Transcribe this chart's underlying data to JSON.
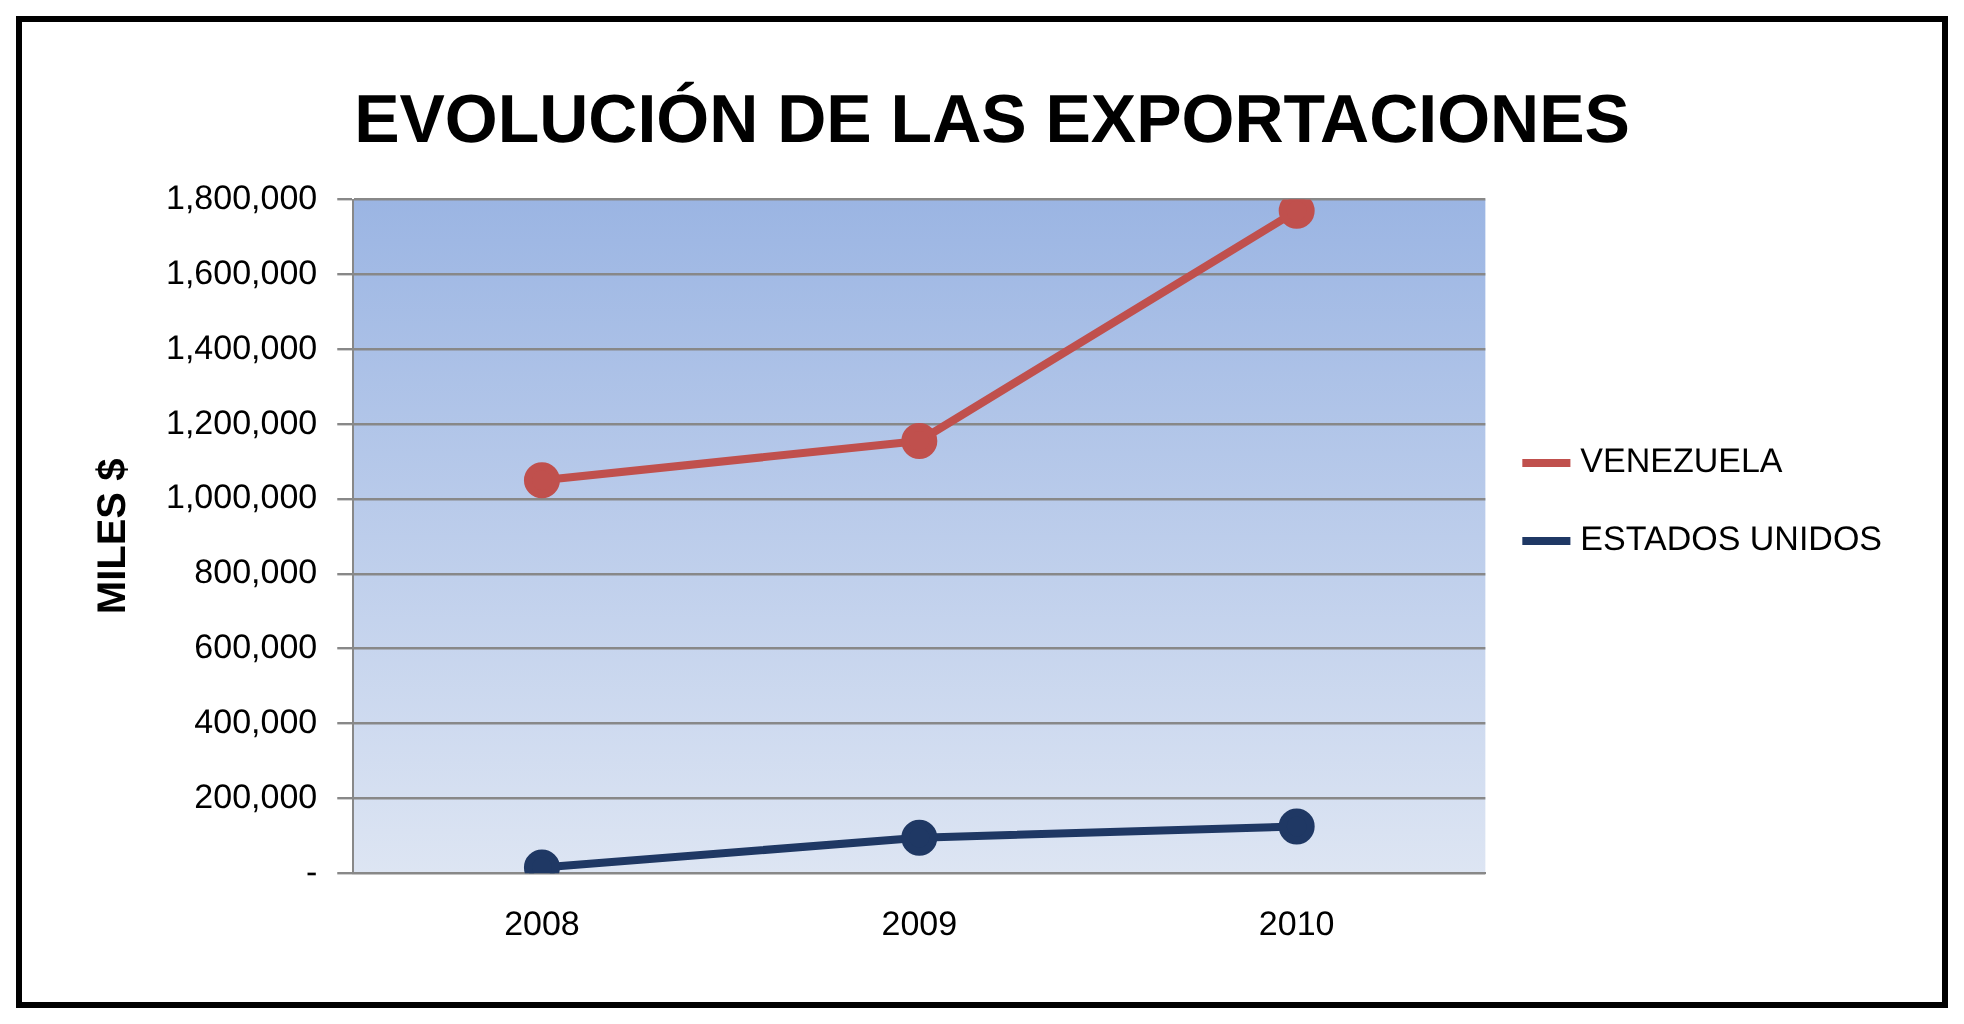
{
  "chart_data": {
    "type": "line",
    "title": "EVOLUCIÓN DE LAS EXPORTACIONES",
    "ylabel": "MILES $",
    "categories": [
      "2008",
      "2009",
      "2010"
    ],
    "series": [
      {
        "name": "VENEZUELA",
        "color": "#c0504d",
        "values": [
          1050000,
          1155000,
          1770000
        ]
      },
      {
        "name": "ESTADOS UNIDOS",
        "color": "#1f3864",
        "values": [
          15000,
          95000,
          125000
        ]
      }
    ],
    "ylim": [
      0,
      1800000
    ],
    "yticks": [
      {
        "value": 0,
        "label": "-"
      },
      {
        "value": 200000,
        "label": "200,000"
      },
      {
        "value": 400000,
        "label": "400,000"
      },
      {
        "value": 600000,
        "label": "600,000"
      },
      {
        "value": 800000,
        "label": "800,000"
      },
      {
        "value": 1000000,
        "label": "1,000,000"
      },
      {
        "value": 1200000,
        "label": "1,200,000"
      },
      {
        "value": 1400000,
        "label": "1,400,000"
      },
      {
        "value": 1600000,
        "label": "1,600,000"
      },
      {
        "value": 1800000,
        "label": "1,800,000"
      }
    ],
    "grid": "y",
    "legend": "right",
    "marker": "circle",
    "line_style": "solid"
  }
}
